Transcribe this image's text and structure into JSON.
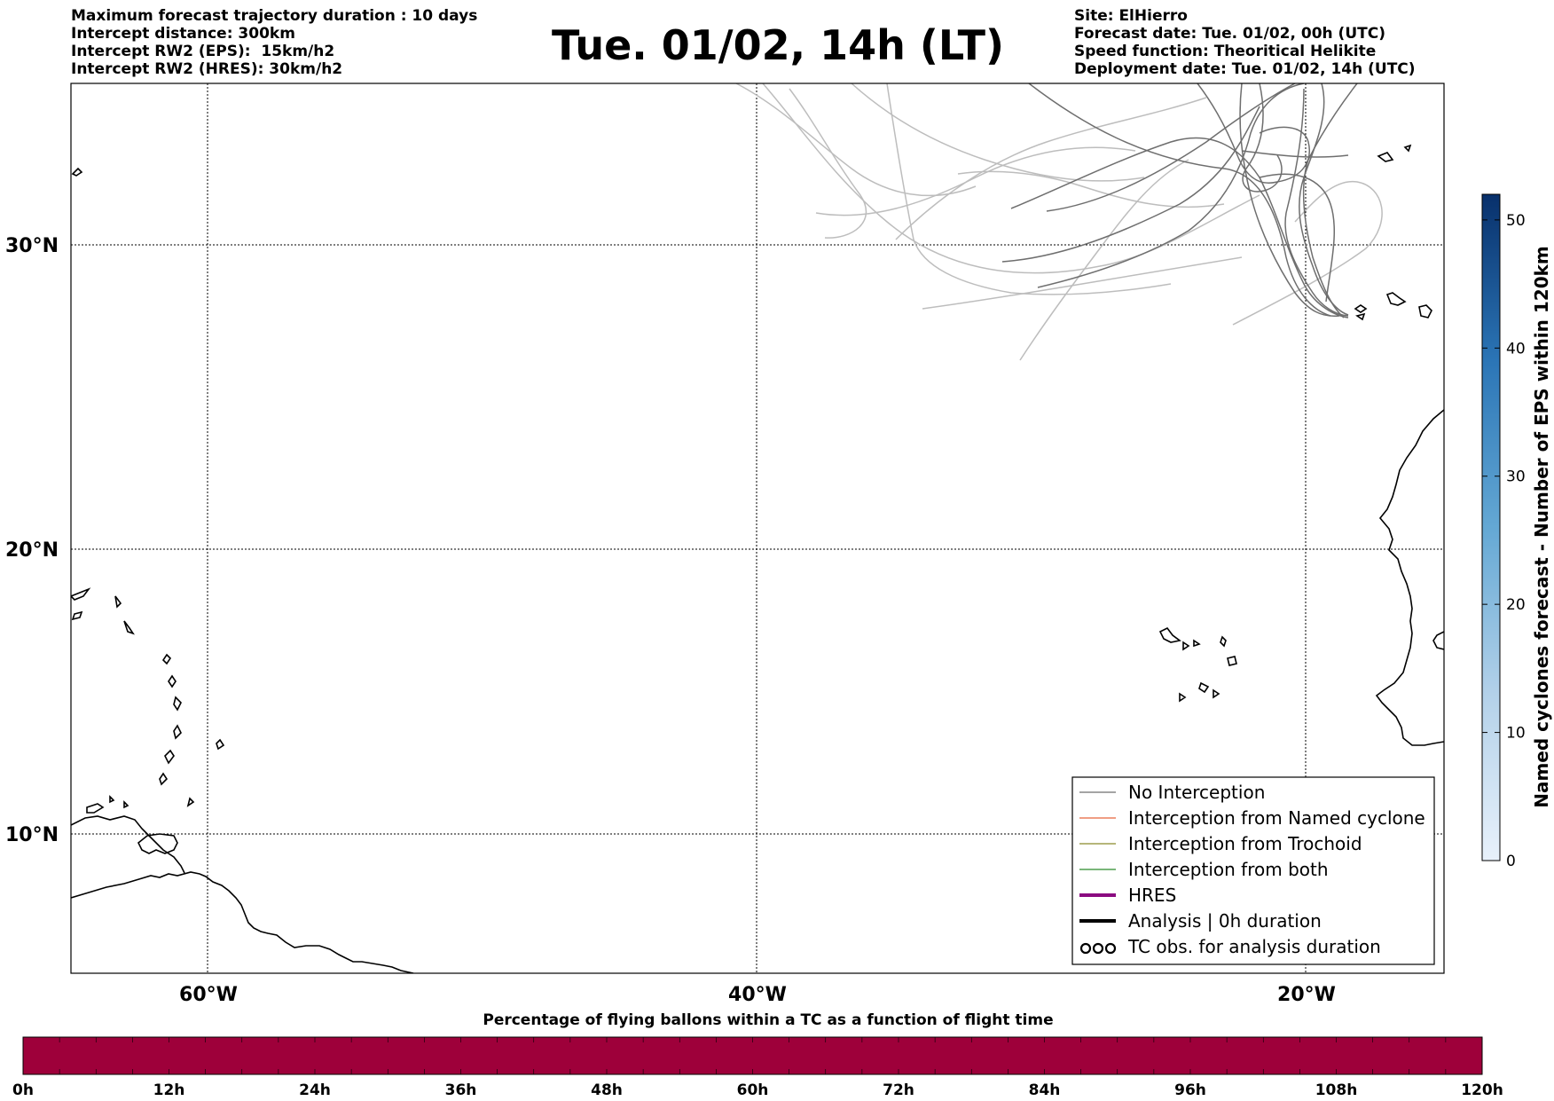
{
  "header": {
    "title": "Tue. 01/02, 14h (LT)",
    "left_lines": [
      "Maximum forecast trajectory duration : 10 days",
      "Intercept distance: 300km",
      "Intercept RW2 (EPS):  15km/h2",
      "Intercept RW2 (HRES): 30km/h2"
    ],
    "right_lines": [
      "Site: ElHierro",
      "Forecast date: Tue. 01/02, 00h (UTC)",
      "Speed function: Theoritical Helikite",
      "Deployment date: Tue. 01/02, 14h (UTC)"
    ]
  },
  "map": {
    "lat_labels": [
      "30°N",
      "20°N",
      "10°N"
    ],
    "lon_labels": [
      "60°W",
      "40°W",
      "20°W"
    ],
    "legend": [
      {
        "label": "No Interception",
        "color": "#6e6e6e",
        "style": "thin"
      },
      {
        "label": "Interception from Named cyclone",
        "color": "#e8643a",
        "style": "thin"
      },
      {
        "label": "Interception from Trochoid",
        "color": "#8a8a2a",
        "style": "thin"
      },
      {
        "label": "Interception from both",
        "color": "#2a8a2a",
        "style": "thin"
      },
      {
        "label": "HRES",
        "color": "#8b0a80",
        "style": "thick"
      },
      {
        "label": "Analysis | 0h duration",
        "color": "#000000",
        "style": "thick"
      },
      {
        "label": "TC obs. for analysis duration",
        "color": "#000000",
        "style": "symbols"
      }
    ]
  },
  "colorbar_right": {
    "label": "Named cyclones forecast - Number of EPS within 120km",
    "ticks": [
      "0",
      "10",
      "20",
      "30",
      "40",
      "50"
    ],
    "color_low": "#e3eef9",
    "color_high": "#08306b"
  },
  "bottom_bar": {
    "title": "Percentage of flying ballons within a TC as a function of flight time",
    "ticks": [
      "0h",
      "12h",
      "24h",
      "36h",
      "48h",
      "60h",
      "72h",
      "84h",
      "96h",
      "108h",
      "120h"
    ],
    "fill_color": "#9e003a"
  }
}
